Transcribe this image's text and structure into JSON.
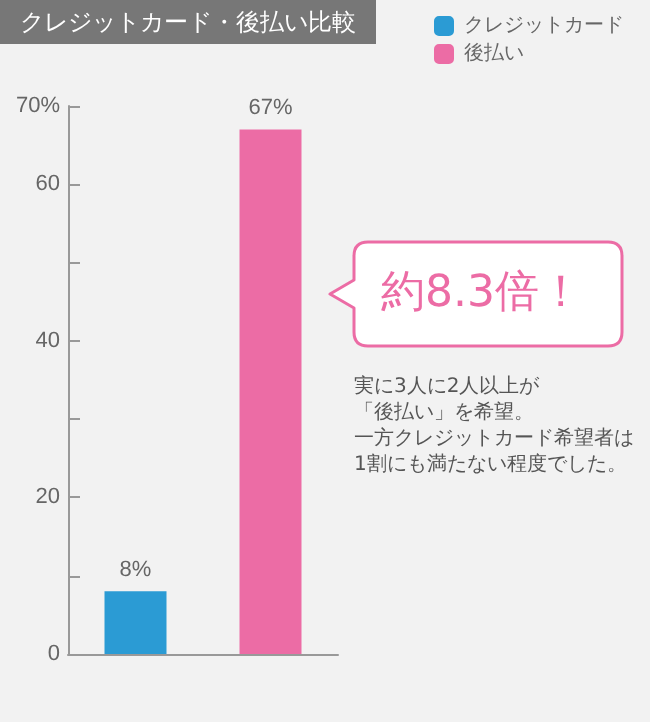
{
  "chart_data": {
    "type": "bar",
    "title": "クレジットカード・後払い比較",
    "categories": [
      null,
      null
    ],
    "series": [
      {
        "name": "クレジットカード",
        "color": "#2b9bd4",
        "values": [
          8,
          null
        ],
        "value_labels": [
          "8%",
          null
        ]
      },
      {
        "name": "後払い",
        "color": "#ec6ca5",
        "values": [
          null,
          67
        ],
        "value_labels": [
          null,
          "67%"
        ]
      }
    ],
    "ylim": [
      0,
      70
    ],
    "yticks": [
      0,
      {
        "value": 10,
        "label": null
      },
      20,
      {
        "value": 30,
        "label": null
      },
      40,
      {
        "value": 50,
        "label": null
      },
      60,
      {
        "value": 70,
        "label": "70%"
      }
    ],
    "grid": false,
    "legend": "top right",
    "annotations": [
      "約8.3倍！",
      "実に3人に2人以上が",
      "「後払い」を希望。",
      "一方クレジットカード希望者は",
      "1割にも満たない程度でした。"
    ]
  }
}
